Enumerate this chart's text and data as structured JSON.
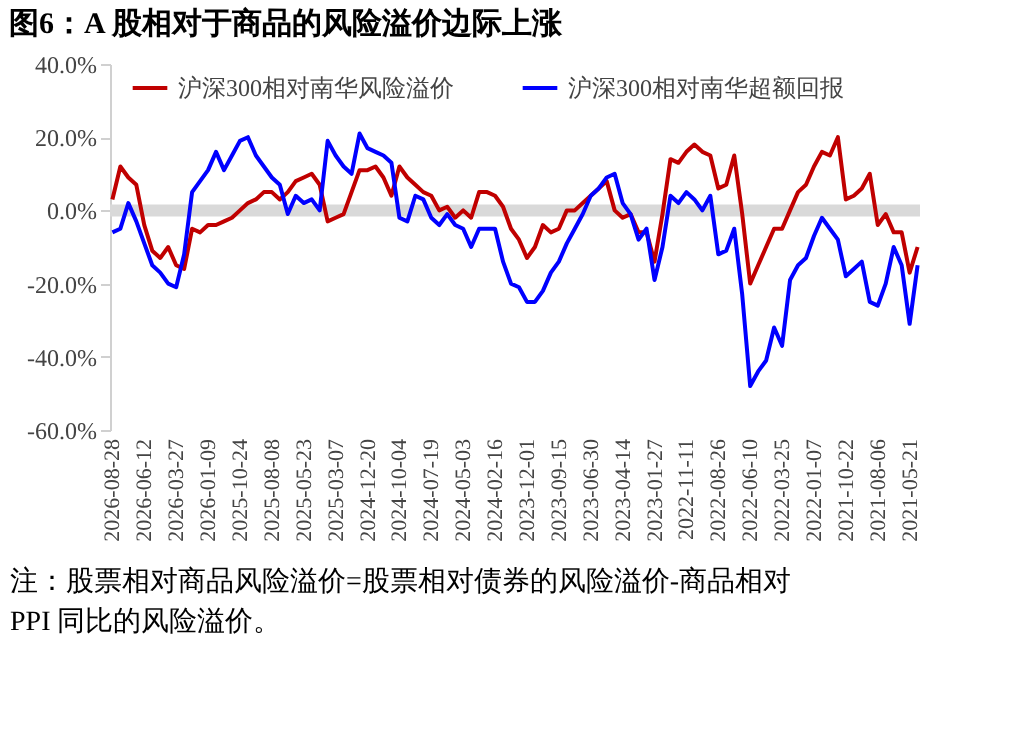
{
  "chart_data": {
    "type": "line",
    "title": "图6：A 股相对于商品的风险溢价边际上涨",
    "categories": [
      "2026-08-28",
      null,
      null,
      null,
      "2026-06-12",
      null,
      null,
      null,
      "2026-03-27",
      null,
      null,
      null,
      "2026-01-09",
      null,
      null,
      null,
      "2025-10-24",
      null,
      null,
      null,
      "2025-08-08",
      null,
      null,
      null,
      "2025-05-23",
      null,
      null,
      null,
      "2025-03-07",
      null,
      null,
      null,
      "2024-12-20",
      null,
      null,
      null,
      "2024-10-04",
      null,
      null,
      null,
      "2024-07-19",
      null,
      null,
      null,
      "2024-05-03",
      null,
      null,
      null,
      "2024-02-16",
      null,
      null,
      null,
      "2023-12-01",
      null,
      null,
      null,
      "2023-09-15",
      null,
      null,
      null,
      "2023-06-30",
      null,
      null,
      null,
      "2023-04-14",
      null,
      null,
      null,
      "2023-01-27",
      null,
      null,
      null,
      "2022-11-11",
      null,
      null,
      null,
      "2022-08-26",
      null,
      null,
      null,
      "2022-06-10",
      null,
      null,
      null,
      "2022-03-25",
      null,
      null,
      null,
      "2022-01-07",
      null,
      null,
      null,
      "2021-10-22",
      null,
      null,
      null,
      "2021-08-06",
      null,
      null,
      null,
      "2021-05-21",
      null
    ],
    "series": [
      {
        "name": "沪深300相对南华风险溢价",
        "color": "#c00000",
        "values": [
          3,
          12,
          9,
          7,
          -4,
          -11,
          -13,
          -10,
          -15,
          -16,
          -5,
          -6,
          -4,
          -4,
          -3,
          -2,
          0,
          2,
          3,
          5,
          5,
          3,
          5,
          8,
          9,
          10,
          7,
          -3,
          -2,
          -1,
          5,
          11,
          11,
          12,
          9,
          4,
          12,
          9,
          7,
          5,
          4,
          0,
          1,
          -2,
          0,
          -2,
          5,
          5,
          4,
          1,
          -5,
          -8,
          -13,
          -10,
          -4,
          -6,
          -5,
          0,
          0,
          2,
          4,
          6,
          8,
          0,
          -2,
          -1,
          -6,
          -6,
          -14,
          -1,
          14,
          13,
          16,
          18,
          16,
          15,
          6,
          7,
          15,
          -1,
          -20,
          -15,
          -10,
          -5,
          -5,
          0,
          5,
          7,
          12,
          16,
          15,
          20,
          3,
          4,
          6,
          10,
          -4,
          -1,
          -6,
          -6,
          -17,
          -10
        ]
      },
      {
        "name": "沪深300相对南华超额回报",
        "color": "#0000ff",
        "values": [
          -6,
          -5,
          2,
          -3,
          -9,
          -15,
          -17,
          -20,
          -21,
          -12,
          5,
          8,
          11,
          16,
          11,
          15,
          19,
          20,
          15,
          12,
          9,
          7,
          -1,
          4,
          2,
          3,
          0,
          19,
          15,
          12,
          10,
          21,
          17,
          16,
          15,
          13,
          -2,
          -3,
          4,
          3,
          -2,
          -4,
          -1,
          -4,
          -5,
          -10,
          -5,
          -5,
          -5,
          -14,
          -20,
          -21,
          -25,
          -25,
          -22,
          -17,
          -14,
          -9,
          -5,
          -1,
          4,
          6,
          9,
          10,
          2,
          -1,
          -8,
          -5,
          -19,
          -10,
          4,
          2,
          5,
          3,
          0,
          4,
          -12,
          -11,
          -5,
          -23,
          -48,
          -44,
          -41,
          -32,
          -37,
          -19,
          -15,
          -13,
          -7,
          -2,
          -5,
          -8,
          -18,
          -16,
          -14,
          -25,
          -26,
          -20,
          -10,
          -15,
          -31,
          -15
        ]
      }
    ],
    "ylim": [
      -60,
      40
    ],
    "yticks": [
      {
        "value": -60,
        "label": "-60.0%"
      },
      {
        "value": -40,
        "label": "-40.0%"
      },
      {
        "value": -20,
        "label": "-20.0%"
      },
      {
        "value": 0,
        "label": "0.0%"
      },
      {
        "value": 20,
        "label": "20.0%"
      },
      {
        "value": 40,
        "label": "40.0%"
      }
    ],
    "ref_lines": [
      {
        "axis": "y",
        "value": 0,
        "color": "#d9d9d9"
      }
    ],
    "legend": "top",
    "grid": false,
    "annotations": [
      "注：股票相对商品风险溢价=股票相对债券的风险溢价-商品相对PPI 同比的风险溢价。"
    ]
  }
}
